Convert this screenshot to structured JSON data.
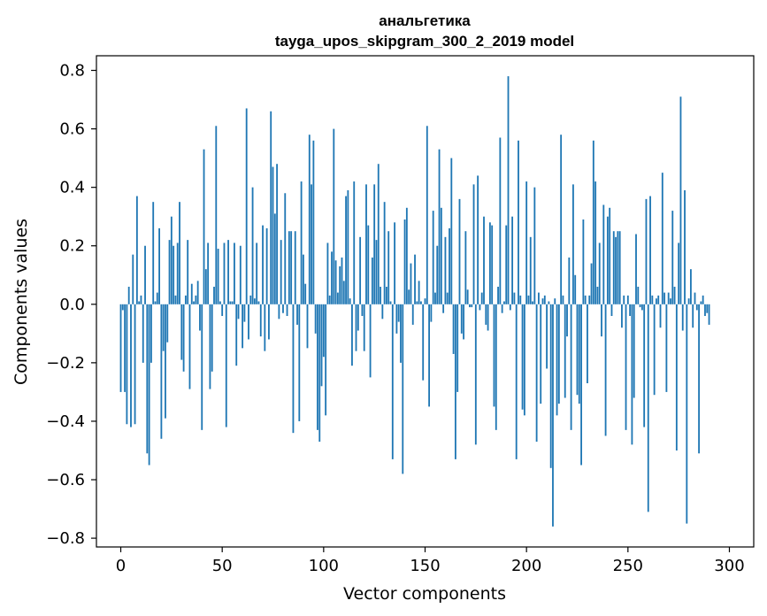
{
  "chart_data": {
    "type": "bar",
    "title_line1": "анальгетика",
    "title_line2": "tayga_upos_skipgram_300_2_2019 model",
    "xlabel": "Vector components",
    "ylabel": "Components values",
    "xlim": [
      -12,
      312
    ],
    "ylim": [
      -0.83,
      0.85
    ],
    "xticks": [
      0,
      50,
      100,
      150,
      200,
      250,
      300
    ],
    "xtick_labels": [
      "0",
      "50",
      "100",
      "150",
      "200",
      "250",
      "300"
    ],
    "yticks": [
      -0.8,
      -0.6,
      -0.4,
      -0.2,
      0.0,
      0.2,
      0.4,
      0.6,
      0.8
    ],
    "ytick_labels": [
      "−0.8",
      "−0.6",
      "−0.4",
      "−0.2",
      "0.0",
      "0.2",
      "0.4",
      "0.6",
      "0.8"
    ],
    "bar_color": "#1f77b4",
    "values": [
      -0.3,
      -0.02,
      -0.3,
      -0.41,
      0.06,
      -0.42,
      0.17,
      -0.41,
      0.37,
      0.01,
      0.03,
      -0.2,
      0.2,
      -0.51,
      -0.55,
      -0.2,
      0.35,
      0.01,
      0.04,
      0.26,
      -0.46,
      -0.16,
      -0.39,
      -0.13,
      0.22,
      0.3,
      0.2,
      0.03,
      0.21,
      0.35,
      -0.19,
      -0.23,
      0.03,
      0.22,
      -0.29,
      0.07,
      0.01,
      0.03,
      0.08,
      -0.09,
      -0.43,
      0.53,
      0.12,
      0.21,
      -0.29,
      -0.23,
      0.06,
      0.61,
      0.19,
      0.01,
      -0.04,
      0.21,
      -0.42,
      0.22,
      0.01,
      0.01,
      0.21,
      -0.21,
      -0.05,
      0.2,
      -0.15,
      -0.06,
      0.67,
      -0.12,
      0.03,
      0.4,
      0.02,
      0.21,
      0.01,
      -0.11,
      0.27,
      -0.16,
      0.26,
      -0.12,
      0.66,
      0.47,
      0.31,
      0.48,
      -0.05,
      0.22,
      -0.03,
      0.38,
      -0.04,
      0.25,
      0.25,
      -0.44,
      0.25,
      -0.07,
      -0.4,
      0.42,
      0.17,
      0.07,
      -0.15,
      0.58,
      0.41,
      0.56,
      -0.1,
      -0.43,
      -0.47,
      -0.28,
      -0.18,
      -0.38,
      0.21,
      0.03,
      0.18,
      0.6,
      0.15,
      0.04,
      0.13,
      0.16,
      0.08,
      0.37,
      0.39,
      0.02,
      -0.21,
      0.42,
      -0.16,
      -0.09,
      0.23,
      -0.04,
      -0.16,
      0.41,
      0.27,
      -0.25,
      0.16,
      0.41,
      0.22,
      0.48,
      0.06,
      -0.05,
      0.35,
      0.06,
      0.25,
      0.01,
      -0.53,
      0.28,
      -0.1,
      -0.06,
      -0.2,
      -0.58,
      0.29,
      0.33,
      0.05,
      0.14,
      -0.07,
      0.17,
      0.01,
      0.08,
      0.01,
      -0.26,
      0.02,
      0.61,
      -0.35,
      -0.06,
      0.32,
      0.04,
      0.2,
      0.53,
      0.33,
      -0.03,
      0.23,
      0.04,
      0.26,
      0.5,
      -0.17,
      -0.53,
      -0.3,
      0.36,
      -0.1,
      -0.12,
      0.25,
      0.05,
      -0.01,
      -0.01,
      0.41,
      -0.48,
      0.44,
      -0.02,
      0.04,
      0.3,
      -0.07,
      -0.09,
      0.28,
      0.27,
      -0.35,
      -0.43,
      0.06,
      0.57,
      -0.03,
      0.01,
      0.27,
      0.78,
      -0.02,
      0.3,
      0.04,
      -0.53,
      0.56,
      0.03,
      -0.36,
      -0.38,
      0.42,
      0.03,
      0.23,
      0.01,
      0.4,
      -0.47,
      0.04,
      -0.34,
      0.02,
      0.03,
      -0.22,
      0.01,
      -0.56,
      -0.76,
      0.02,
      -0.38,
      -0.34,
      0.58,
      0.03,
      -0.32,
      -0.11,
      0.16,
      -0.43,
      0.41,
      0.1,
      -0.31,
      -0.34,
      -0.55,
      0.29,
      0.03,
      -0.27,
      0.03,
      0.14,
      0.56,
      0.42,
      0.06,
      0.21,
      -0.11,
      0.34,
      -0.45,
      0.3,
      0.33,
      -0.04,
      0.25,
      0.23,
      0.25,
      0.25,
      -0.08,
      0.03,
      -0.43,
      0.03,
      -0.04,
      -0.48,
      -0.32,
      0.24,
      0.06,
      -0.01,
      -0.02,
      -0.42,
      0.36,
      -0.71,
      0.37,
      0.03,
      -0.31,
      0.02,
      0.03,
      -0.08,
      0.45,
      0.04,
      -0.3,
      0.04,
      0.02,
      0.32,
      0.06,
      -0.5,
      0.21,
      0.71,
      -0.09,
      0.39,
      -0.75,
      0.02,
      0.12,
      -0.08,
      0.04,
      -0.02,
      -0.51,
      0.01,
      0.03,
      -0.04,
      -0.03,
      -0.07
    ]
  }
}
